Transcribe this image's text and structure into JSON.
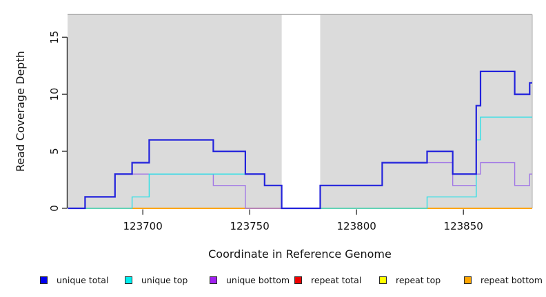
{
  "chart_data": {
    "type": "line",
    "subtype": "step",
    "xlabel": "Coordinate in Reference Genome",
    "ylabel": "Read Coverage Depth",
    "xlim": [
      123664.8,
      123882.2
    ],
    "ylim": [
      0,
      17
    ],
    "x_ticks": [
      123700,
      123750,
      123800,
      123850
    ],
    "y_ticks": [
      0,
      5,
      10,
      15
    ],
    "grid": false,
    "background": "#DBDBDB",
    "masked_region": {
      "x_start": 123765,
      "x_end": 123783,
      "color": "#FFFFFF"
    },
    "series": [
      {
        "id": "repeat-total",
        "name": "repeat total",
        "color": "#EE2222",
        "width": 1.3,
        "points": [
          [
            123665,
            0
          ]
        ]
      },
      {
        "id": "repeat-top",
        "name": "repeat top",
        "color": "#F2F200",
        "width": 1.3,
        "points": [
          [
            123665,
            0
          ]
        ]
      },
      {
        "id": "repeat-bottom",
        "name": "repeat bottom",
        "color": "#FF9F00",
        "width": 1.7,
        "points": [
          [
            123665,
            0
          ]
        ]
      },
      {
        "id": "unique-bottom",
        "name": "unique bottom",
        "color": "#A177E6",
        "width": 1.4,
        "points": [
          [
            123665,
            0
          ],
          [
            123673,
            1
          ],
          [
            123687,
            3
          ],
          [
            123733,
            2
          ],
          [
            123748,
            0
          ],
          [
            123783,
            2
          ],
          [
            123812,
            4
          ],
          [
            123845,
            2
          ],
          [
            123856,
            3
          ],
          [
            123858,
            4
          ],
          [
            123874,
            2
          ],
          [
            123881,
            3
          ]
        ]
      },
      {
        "id": "unique-top",
        "name": "unique top",
        "color": "#2EE0E6",
        "width": 1.4,
        "points": [
          [
            123665,
            0
          ],
          [
            123695,
            1
          ],
          [
            123703,
            3
          ],
          [
            123757,
            2
          ],
          [
            123765,
            0
          ],
          [
            123833,
            1
          ],
          [
            123856,
            6
          ],
          [
            123858,
            8
          ]
        ]
      },
      {
        "id": "unique-total",
        "name": "unique total",
        "color": "#2323DC",
        "width": 2.2,
        "points": [
          [
            123665,
            0
          ],
          [
            123673,
            1
          ],
          [
            123687,
            3
          ],
          [
            123695,
            4
          ],
          [
            123703,
            6
          ],
          [
            123733,
            5
          ],
          [
            123748,
            3
          ],
          [
            123757,
            2
          ],
          [
            123765,
            0
          ],
          [
            123783,
            2
          ],
          [
            123812,
            4
          ],
          [
            123833,
            5
          ],
          [
            123845,
            3
          ],
          [
            123856,
            9
          ],
          [
            123858,
            12
          ],
          [
            123874,
            10
          ],
          [
            123881,
            11
          ]
        ]
      }
    ],
    "legend": {
      "position": "bottom",
      "items": [
        {
          "label": "unique total",
          "color": "#0000EE"
        },
        {
          "label": "unique top",
          "color": "#00EEEE"
        },
        {
          "label": "unique bottom",
          "color": "#A020F0"
        },
        {
          "label": "repeat total",
          "color": "#EE0000"
        },
        {
          "label": "repeat top",
          "color": "#FFFF00"
        },
        {
          "label": "repeat bottom",
          "color": "#FFA500"
        }
      ]
    }
  }
}
